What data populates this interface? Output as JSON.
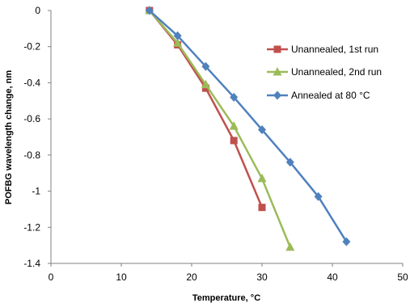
{
  "chart_data": {
    "type": "line",
    "title": "",
    "xlabel": "Temperature, °C",
    "ylabel": "POFBG wavelength change, nm",
    "xlim": [
      0,
      50
    ],
    "ylim": [
      -1.4,
      0
    ],
    "xticks": [
      "0",
      "10",
      "20",
      "30",
      "40",
      "50"
    ],
    "yticks": [
      "0",
      "-0.2",
      "-0.4",
      "-0.6",
      "-0.8",
      "-1",
      "-1.2",
      "-1.4"
    ],
    "grid": false,
    "legend": "top-right",
    "series": [
      {
        "name": "Unannealed, 1st run",
        "color": "#C0504D",
        "marker": "square",
        "x": [
          14,
          18,
          22,
          26,
          30
        ],
        "y": [
          0,
          -0.19,
          -0.43,
          -0.72,
          -1.09
        ]
      },
      {
        "name": "Unannealed, 2nd run",
        "color": "#9BBB59",
        "marker": "triangle",
        "x": [
          14,
          18,
          22,
          26,
          30,
          34
        ],
        "y": [
          0,
          -0.18,
          -0.41,
          -0.64,
          -0.93,
          -1.31
        ]
      },
      {
        "name": "Annealed at 80 °C",
        "color": "#4F81BD",
        "marker": "diamond",
        "x": [
          14,
          18,
          22,
          26,
          30,
          34,
          38,
          42
        ],
        "y": [
          0,
          -0.14,
          -0.31,
          -0.48,
          -0.66,
          -0.84,
          -1.03,
          -1.28
        ]
      }
    ]
  }
}
